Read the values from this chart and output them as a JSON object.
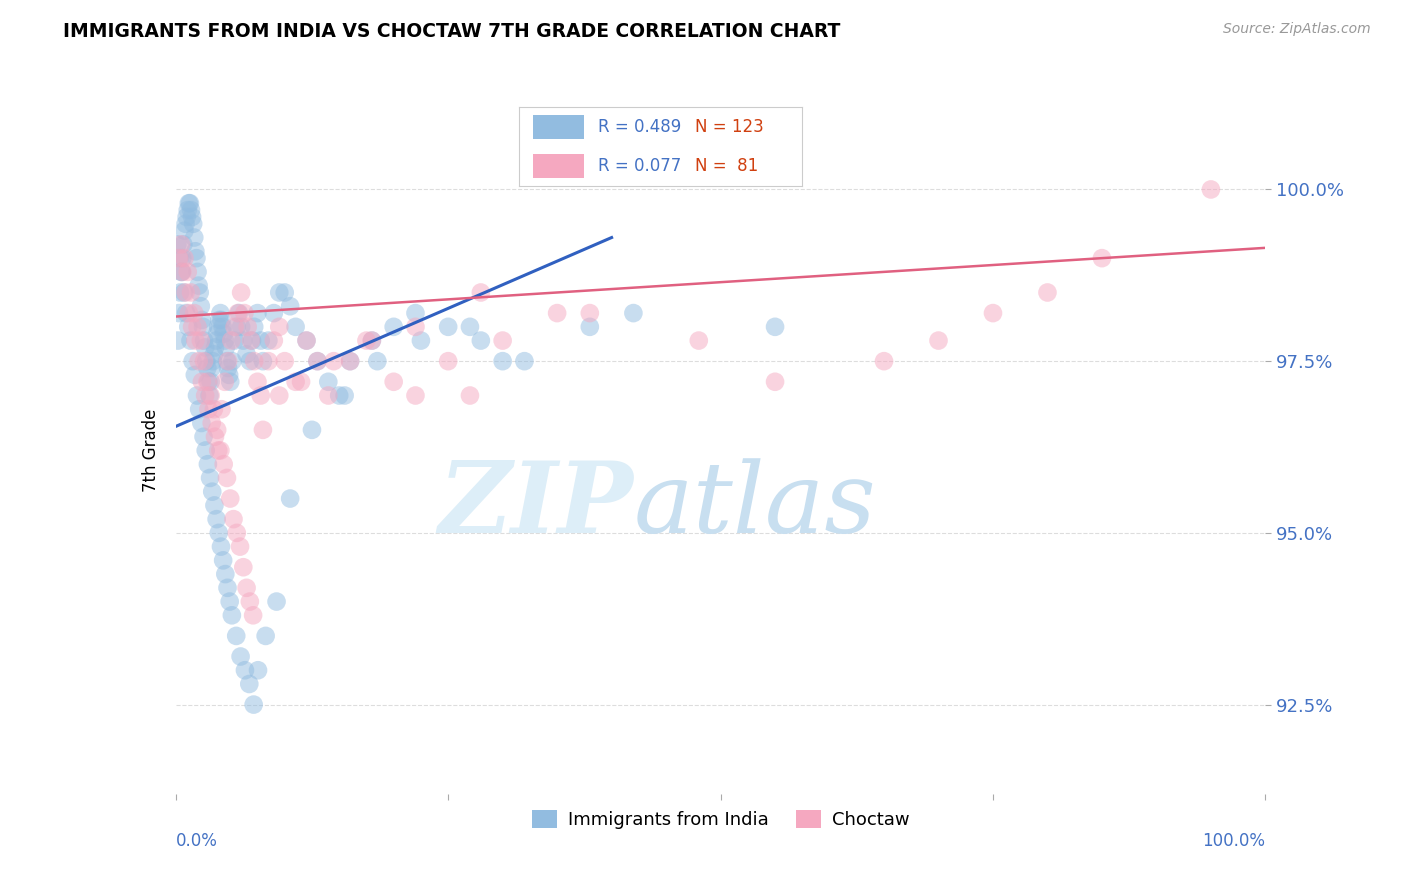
{
  "title": "IMMIGRANTS FROM INDIA VS CHOCTAW 7TH GRADE CORRELATION CHART",
  "source": "Source: ZipAtlas.com",
  "ylabel": "7th Grade",
  "ytick_labels": [
    "92.5%",
    "95.0%",
    "97.5%",
    "100.0%"
  ],
  "ytick_values": [
    92.5,
    95.0,
    97.5,
    100.0
  ],
  "xlim": [
    0.0,
    100.0
  ],
  "ylim": [
    91.2,
    101.2
  ],
  "blue_scatter_color": "#92bce0",
  "pink_scatter_color": "#f5a8c0",
  "blue_line_color": "#3060c0",
  "pink_line_color": "#e06080",
  "watermark_zip": "ZIP",
  "watermark_atlas": "atlas",
  "watermark_color": "#ddeef8",
  "legend_items": [
    {
      "label": "Immigrants from India",
      "color": "#92bce0"
    },
    {
      "label": "Choctaw",
      "color": "#f5a8c0"
    }
  ],
  "blue_R": "0.489",
  "blue_N": "123",
  "pink_R": "0.077",
  "pink_N": " 81",
  "r_color": "#4472c4",
  "n_color": "#d04010",
  "blue_line_x0": 0.0,
  "blue_line_y0": 96.55,
  "blue_line_x1": 40.0,
  "blue_line_y1": 99.3,
  "pink_line_x0": 0.0,
  "pink_line_y0": 98.15,
  "pink_line_x1": 100.0,
  "pink_line_y1": 99.15,
  "blue_x": [
    0.2,
    0.3,
    0.4,
    0.5,
    0.6,
    0.7,
    0.8,
    0.9,
    1.0,
    1.1,
    1.2,
    1.3,
    1.4,
    1.5,
    1.6,
    1.7,
    1.8,
    1.9,
    2.0,
    2.1,
    2.2,
    2.3,
    2.4,
    2.5,
    2.6,
    2.7,
    2.8,
    2.9,
    3.0,
    3.1,
    3.2,
    3.3,
    3.4,
    3.5,
    3.6,
    3.7,
    3.8,
    3.9,
    4.0,
    4.1,
    4.2,
    4.3,
    4.4,
    4.5,
    4.6,
    4.7,
    4.8,
    4.9,
    5.0,
    5.2,
    5.4,
    5.6,
    5.8,
    6.0,
    6.2,
    6.5,
    6.8,
    7.0,
    7.2,
    7.5,
    7.8,
    8.0,
    8.5,
    9.0,
    9.5,
    10.0,
    10.5,
    11.0,
    12.0,
    13.0,
    14.0,
    15.0,
    16.0,
    18.0,
    20.0,
    22.0,
    25.0,
    28.0,
    32.0,
    38.0,
    0.15,
    0.35,
    0.55,
    0.75,
    0.95,
    1.15,
    1.35,
    1.55,
    1.75,
    1.95,
    2.15,
    2.35,
    2.55,
    2.75,
    2.95,
    3.15,
    3.35,
    3.55,
    3.75,
    3.95,
    4.15,
    4.35,
    4.55,
    4.75,
    4.95,
    5.15,
    5.55,
    5.95,
    6.35,
    6.75,
    7.15,
    7.55,
    8.25,
    9.25,
    10.5,
    12.5,
    15.5,
    18.5,
    22.5,
    27.0,
    30.0,
    42.0,
    55.0
  ],
  "blue_y": [
    97.8,
    98.2,
    98.5,
    98.8,
    99.0,
    99.2,
    99.4,
    99.5,
    99.6,
    99.7,
    99.8,
    99.8,
    99.7,
    99.6,
    99.5,
    99.3,
    99.1,
    99.0,
    98.8,
    98.6,
    98.5,
    98.3,
    98.1,
    98.0,
    97.8,
    97.7,
    97.5,
    97.4,
    97.2,
    97.0,
    97.2,
    97.4,
    97.5,
    97.6,
    97.7,
    97.8,
    97.9,
    98.0,
    98.1,
    98.2,
    98.1,
    98.0,
    97.9,
    97.8,
    97.7,
    97.5,
    97.4,
    97.3,
    97.2,
    97.5,
    97.8,
    98.0,
    98.2,
    98.0,
    97.8,
    97.6,
    97.5,
    97.8,
    98.0,
    98.2,
    97.8,
    97.5,
    97.8,
    98.2,
    98.5,
    98.5,
    98.3,
    98.0,
    97.8,
    97.5,
    97.2,
    97.0,
    97.5,
    97.8,
    98.0,
    98.2,
    98.0,
    97.8,
    97.5,
    98.0,
    99.2,
    99.0,
    98.8,
    98.5,
    98.2,
    98.0,
    97.8,
    97.5,
    97.3,
    97.0,
    96.8,
    96.6,
    96.4,
    96.2,
    96.0,
    95.8,
    95.6,
    95.4,
    95.2,
    95.0,
    94.8,
    94.6,
    94.4,
    94.2,
    94.0,
    93.8,
    93.5,
    93.2,
    93.0,
    92.8,
    92.5,
    93.0,
    93.5,
    94.0,
    95.5,
    96.5,
    97.0,
    97.5,
    97.8,
    98.0,
    97.5,
    98.2,
    98.0
  ],
  "pink_x": [
    0.3,
    0.6,
    0.9,
    1.2,
    1.5,
    1.8,
    2.1,
    2.4,
    2.7,
    3.0,
    3.3,
    3.6,
    3.9,
    4.2,
    4.5,
    4.8,
    5.1,
    5.4,
    5.7,
    6.0,
    6.3,
    6.6,
    6.9,
    7.2,
    7.5,
    7.8,
    8.5,
    9.0,
    9.5,
    10.0,
    11.0,
    12.0,
    13.0,
    14.0,
    16.0,
    18.0,
    20.0,
    22.0,
    25.0,
    27.0,
    30.0,
    35.0,
    0.5,
    0.8,
    1.1,
    1.4,
    1.7,
    2.0,
    2.3,
    2.6,
    2.9,
    3.2,
    3.5,
    3.8,
    4.1,
    4.4,
    4.7,
    5.0,
    5.3,
    5.6,
    5.9,
    6.2,
    6.5,
    6.8,
    7.1,
    8.0,
    9.5,
    11.5,
    14.5,
    17.5,
    22.0,
    28.0,
    38.0,
    48.0,
    55.0,
    65.0,
    70.0,
    75.0,
    80.0,
    85.0,
    95.0
  ],
  "pink_y": [
    99.0,
    98.8,
    98.5,
    98.2,
    98.0,
    97.8,
    97.5,
    97.2,
    97.0,
    96.8,
    96.6,
    96.4,
    96.2,
    96.8,
    97.2,
    97.5,
    97.8,
    98.0,
    98.2,
    98.5,
    98.2,
    98.0,
    97.8,
    97.5,
    97.2,
    97.0,
    97.5,
    97.8,
    98.0,
    97.5,
    97.2,
    97.8,
    97.5,
    97.0,
    97.5,
    97.8,
    97.2,
    97.0,
    97.5,
    97.0,
    97.8,
    98.2,
    99.2,
    99.0,
    98.8,
    98.5,
    98.2,
    98.0,
    97.8,
    97.5,
    97.2,
    97.0,
    96.8,
    96.5,
    96.2,
    96.0,
    95.8,
    95.5,
    95.2,
    95.0,
    94.8,
    94.5,
    94.2,
    94.0,
    93.8,
    96.5,
    97.0,
    97.2,
    97.5,
    97.8,
    98.0,
    98.5,
    98.2,
    97.8,
    97.2,
    97.5,
    97.8,
    98.2,
    98.5,
    99.0,
    100.0
  ]
}
